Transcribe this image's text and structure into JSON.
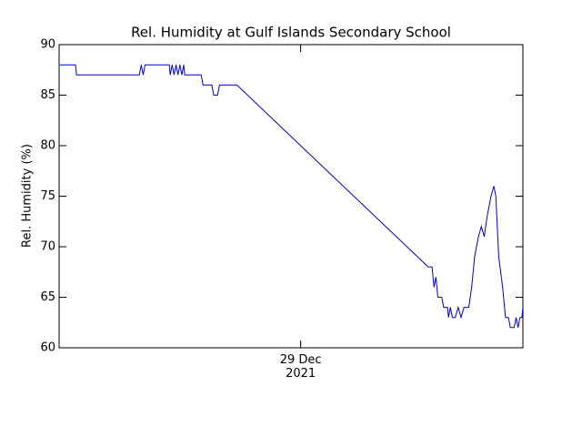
{
  "chart_data": {
    "type": "line",
    "title": "Rel. Humidity at Gulf Islands Secondary School",
    "y_label": "Rel. Humidity (%)",
    "xlim": [
      -25,
      23
    ],
    "xticks": [
      {
        "value": 0,
        "label": "29 Dec\n2021"
      }
    ],
    "ylim": [
      60,
      90
    ],
    "yticks": [
      60,
      65,
      70,
      75,
      80,
      85,
      90
    ],
    "series": [
      {
        "color": "#0000cc",
        "x": [
          -24.9,
          -23.3,
          -23.2,
          -16.7,
          -16.5,
          -16.3,
          -16.1,
          -13.6,
          -13.5,
          -13.3,
          -13.1,
          -12.9,
          -12.7,
          -12.5,
          -12.3,
          -12.1,
          -12.0,
          -10.3,
          -10.1,
          -9.2,
          -9.0,
          -8.6,
          -8.4,
          -6.6,
          13.2,
          13.6,
          13.8,
          14.0,
          14.2,
          14.6,
          14.8,
          15.2,
          15.3,
          15.5,
          15.7,
          16.0,
          16.3,
          16.6,
          16.9,
          17.4,
          17.7,
          18.0,
          18.4,
          18.7,
          19.0,
          19.3,
          19.7,
          20.0,
          20.2,
          20.5,
          20.9,
          21.2,
          21.5,
          21.7,
          22.1,
          22.3,
          22.5,
          22.7,
          22.9,
          23.0
        ],
        "values": [
          88,
          88,
          87,
          87,
          88,
          87,
          88,
          88,
          87,
          88,
          87,
          88,
          87,
          88,
          87,
          88,
          87,
          87,
          86,
          86,
          85,
          85,
          86,
          86,
          68,
          68,
          66,
          67,
          65,
          65,
          64,
          64,
          63,
          64,
          63,
          63,
          64,
          63,
          64,
          64,
          66,
          69,
          71,
          72,
          71,
          73,
          75,
          76,
          75,
          69,
          66,
          63,
          63,
          62,
          62,
          63,
          62,
          63,
          63,
          64
        ]
      }
    ]
  }
}
